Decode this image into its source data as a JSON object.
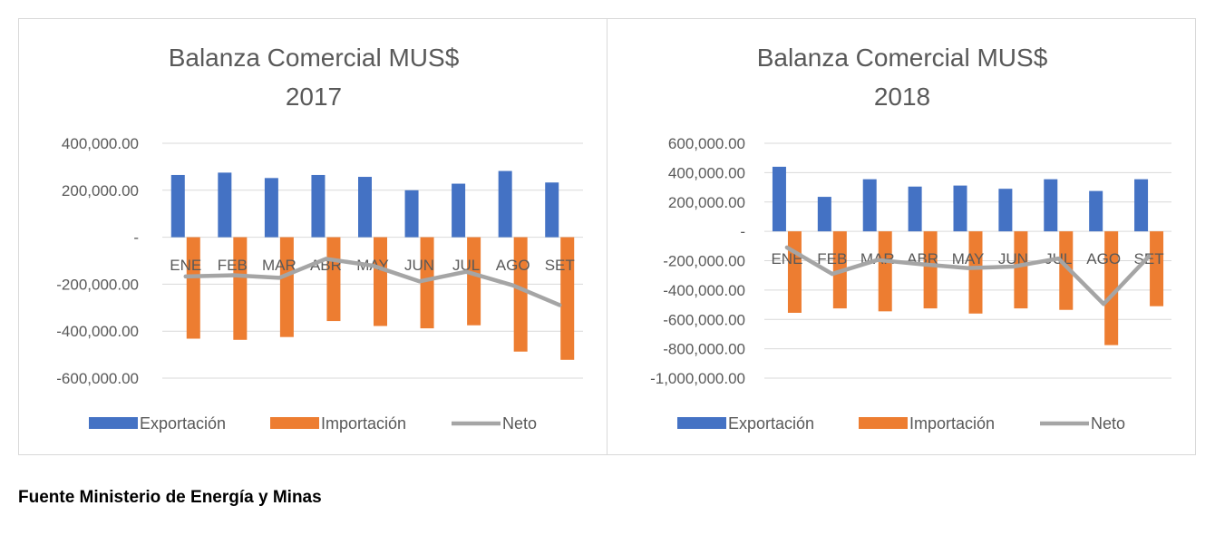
{
  "source_note": "Fuente Ministerio de Energía y Minas",
  "colors": {
    "export": "#4472c4",
    "import": "#ed7d31",
    "net": "#a5a5a5",
    "grid": "#d9d9d9",
    "text": "#595959"
  },
  "chart_data": [
    {
      "type": "bar",
      "title": [
        "Balanza Comercial MUS$",
        "2017"
      ],
      "categories": [
        "ENE",
        "FEB",
        "MAR",
        "ABR",
        "MAY",
        "JUN",
        "JUL",
        "AGO",
        "SET"
      ],
      "ylim": [
        -600000,
        400000
      ],
      "yticks": [
        400000,
        200000,
        0,
        -200000,
        -400000,
        -600000
      ],
      "ytick_labels": [
        "400,000.00",
        "200,000.00",
        "-",
        "-200,000.00",
        "-400,000.00",
        "-600,000.00"
      ],
      "grid": true,
      "legend_position": "bottom",
      "series": [
        {
          "name": "Exportación",
          "kind": "bar",
          "values": [
            265000,
            275000,
            252000,
            265000,
            257000,
            200000,
            228000,
            282000,
            233000
          ]
        },
        {
          "name": "Importación",
          "kind": "bar",
          "values": [
            -432000,
            -437000,
            -425000,
            -357000,
            -378000,
            -388000,
            -375000,
            -487000,
            -522000
          ]
        },
        {
          "name": "Neto",
          "kind": "line",
          "values": [
            -167000,
            -162000,
            -173000,
            -92000,
            -121000,
            -188000,
            -147000,
            -205000,
            -289000
          ]
        }
      ]
    },
    {
      "type": "bar",
      "title": [
        "Balanza Comercial MUS$",
        "2018"
      ],
      "categories": [
        "ENE",
        "FEB",
        "MAR",
        "ABR",
        "MAY",
        "JUN",
        "JUL",
        "AGO",
        "SET"
      ],
      "ylim": [
        -1000000,
        600000
      ],
      "yticks": [
        600000,
        400000,
        200000,
        0,
        -200000,
        -400000,
        -600000,
        -800000,
        -1000000
      ],
      "ytick_labels": [
        "600,000.00",
        "400,000.00",
        "200,000.00",
        "-",
        "-200,000.00",
        "-400,000.00",
        "-600,000.00",
        "-800,000.00",
        "-1,000,000.00"
      ],
      "grid": true,
      "legend_position": "bottom",
      "series": [
        {
          "name": "Exportación",
          "kind": "bar",
          "values": [
            440000,
            235000,
            355000,
            305000,
            312000,
            290000,
            355000,
            275000,
            355000
          ]
        },
        {
          "name": "Importación",
          "kind": "bar",
          "values": [
            -555000,
            -525000,
            -545000,
            -525000,
            -560000,
            -525000,
            -535000,
            -775000,
            -510000
          ]
        },
        {
          "name": "Neto",
          "kind": "line",
          "values": [
            -110000,
            -290000,
            -195000,
            -225000,
            -250000,
            -240000,
            -185000,
            -495000,
            -170000
          ]
        }
      ]
    }
  ]
}
